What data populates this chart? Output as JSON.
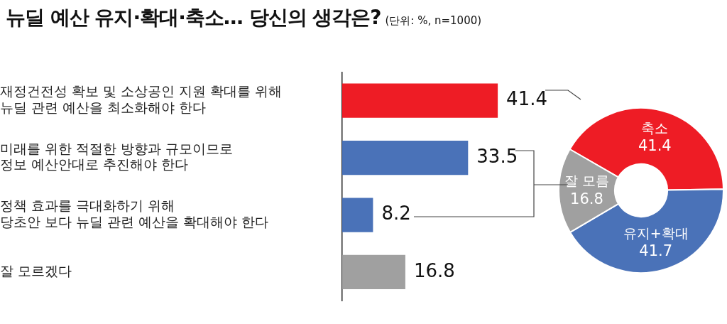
{
  "chart_data": [
    {
      "type": "bar",
      "orientation": "horizontal",
      "title": "뉴딜 예산 유지·확대·축소… 당신의 생각은?",
      "subtitle": "(단위: %, n=1000)",
      "categories": [
        "재정건전성 확보 및 소상공인 지원 확대를 위해\n뉴딜 관련 예산을 최소화해야 한다",
        "미래를 위한 적절한 방향과 규모이므로\n정보 예산안대로 추진해야 한다",
        "정책 효과를 극대화하기 위해\n당초안 보다 뉴딜 관련 예산을 확대해야 한다",
        "잘 모르겠다"
      ],
      "values": [
        41.4,
        33.5,
        8.2,
        16.8
      ],
      "colors": [
        "#ee1c25",
        "#4a72b8",
        "#4a72b8",
        "#a0a0a0"
      ],
      "data_labels": true,
      "legend": false,
      "grid": false
    },
    {
      "type": "donut",
      "categories": [
        "축소",
        "유지+확대",
        "잘 모름"
      ],
      "values": [
        41.4,
        41.7,
        16.8
      ],
      "colors": [
        "#ee1c25",
        "#4a72b8",
        "#a0a0a0"
      ],
      "data_labels": true,
      "legend": false
    }
  ]
}
